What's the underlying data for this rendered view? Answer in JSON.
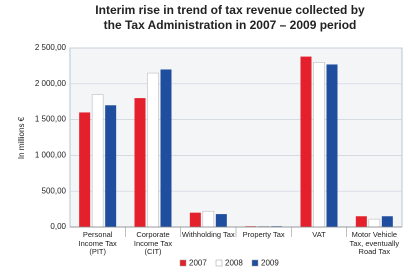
{
  "chart_data": {
    "type": "bar",
    "title": "Interim rise in trend of tax revenue collected by the Tax Administration in 2007 – 2009 period",
    "y_label": "In millions €",
    "categories": [
      "Personal Income Tax (PIT)",
      "Corporate Income Tax (CIT)",
      "Withholding Tax",
      "Property Tax",
      "VAT",
      "Motor Vehicle Tax, eventually Road Tax"
    ],
    "series": [
      {
        "name": "2007",
        "color": "#e3202b",
        "values": [
          1600,
          1800,
          200,
          10,
          2380,
          150
        ]
      },
      {
        "name": "2008",
        "color": "#ffffff",
        "values": [
          1850,
          2150,
          220,
          10,
          2300,
          110
        ]
      },
      {
        "name": "2009",
        "color": "#1f4e9e",
        "values": [
          1700,
          2200,
          180,
          10,
          2270,
          150
        ]
      }
    ],
    "ylim": [
      0,
      2500
    ],
    "yticks": [
      {
        "value": 0,
        "label": "0,00"
      },
      {
        "value": 500,
        "label": "500,00"
      },
      {
        "value": 1000,
        "label": "1 000,00"
      },
      {
        "value": 1500,
        "label": "1 500,00"
      },
      {
        "value": 2000,
        "label": "2 000,00"
      },
      {
        "value": 2500,
        "label": "2 500,00"
      }
    ],
    "grid": true,
    "legend": "bottom"
  }
}
